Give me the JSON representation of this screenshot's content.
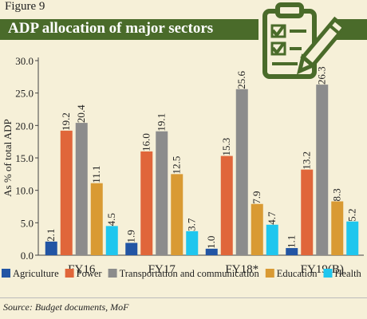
{
  "figure_label": "Figure 9",
  "title": "ADP allocation of major sectors",
  "source": "Source: Budget documents, MoF",
  "icon": "clipboard-checklist-icon",
  "chart_data": {
    "type": "bar",
    "title": "ADP allocation of major sectors",
    "ylabel": "As % of total ADP",
    "xlabel": "",
    "ylim": [
      0,
      30
    ],
    "yticks": [
      "0.0",
      "5.0",
      "10.0",
      "15.0",
      "20.0",
      "25.0",
      "30.0"
    ],
    "grid": false,
    "legend_position": "bottom",
    "categories": [
      "FY16",
      "FY17",
      "FY18*",
      "FY19(B)"
    ],
    "series": [
      {
        "name": "Agriculture",
        "color": "#2255a4",
        "values": [
          2.1,
          1.9,
          1.0,
          1.1
        ],
        "labels": [
          "2.1",
          "1.9",
          "1.0",
          "1.1"
        ]
      },
      {
        "name": "Power",
        "color": "#e0663a",
        "values": [
          19.2,
          16.0,
          15.3,
          13.2
        ],
        "labels": [
          "19.2",
          "16.0",
          "15.3",
          "13.2"
        ]
      },
      {
        "name": "Transportation and communication",
        "color": "#8c8c8c",
        "values": [
          20.4,
          19.1,
          25.6,
          26.3
        ],
        "labels": [
          "20.4",
          "19.1",
          "25.6",
          "26.3"
        ]
      },
      {
        "name": "Education",
        "color": "#d99a33",
        "values": [
          11.1,
          12.5,
          7.9,
          8.3
        ],
        "labels": [
          "11.1",
          "12.5",
          "7.9",
          "8.3"
        ]
      },
      {
        "name": "Health",
        "color": "#1fc6ee",
        "values": [
          4.5,
          3.7,
          4.7,
          5.2
        ],
        "labels": [
          "4.5",
          "3.7",
          "4.7",
          "5.2"
        ]
      }
    ]
  }
}
